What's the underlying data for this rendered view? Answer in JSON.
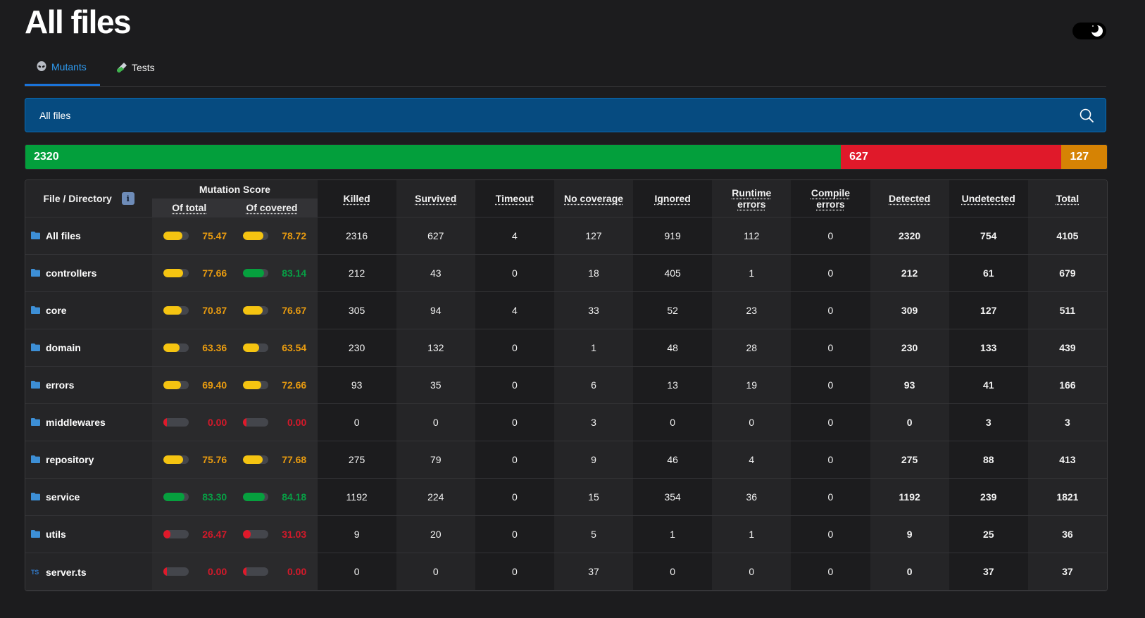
{
  "page": {
    "title": "All files"
  },
  "tabs": [
    {
      "label": "Mutants",
      "icon": "alien-icon",
      "active": true
    },
    {
      "label": "Tests",
      "icon": "test-tube-icon",
      "active": false
    }
  ],
  "breadcrumb": {
    "label": "All files"
  },
  "summary": {
    "killed": "2320",
    "survived": "627",
    "no_coverage": "127",
    "killed_fraction": 0.754,
    "survived_fraction": 0.204,
    "no_coverage_fraction": 0.042,
    "colors": {
      "killed": "#039f3c",
      "survived": "#e0192a",
      "no_coverage": "#d68304"
    }
  },
  "table": {
    "headers": {
      "file": "File / Directory",
      "mutation_score": "Mutation Score",
      "of_total": "Of total",
      "of_covered": "Of covered",
      "killed": "Killed",
      "survived": "Survived",
      "timeout": "Timeout",
      "no_coverage": "No coverage",
      "ignored": "Ignored",
      "runtime_errors_1": "Runtime",
      "runtime_errors_2": "errors",
      "compile_errors_1": "Compile",
      "compile_errors_2": "errors",
      "detected": "Detected",
      "undetected": "Undetected",
      "total": "Total"
    },
    "rows": [
      {
        "name": "All files",
        "type": "folder",
        "of_total": "75.47",
        "of_covered": "78.72",
        "killed": "2316",
        "survived": "627",
        "timeout": "4",
        "no_coverage": "127",
        "ignored": "919",
        "runtime_errors": "112",
        "compile_errors": "0",
        "detected": "2320",
        "undetected": "754",
        "total": "4105"
      },
      {
        "name": "controllers",
        "type": "folder",
        "of_total": "77.66",
        "of_covered": "83.14",
        "killed": "212",
        "survived": "43",
        "timeout": "0",
        "no_coverage": "18",
        "ignored": "405",
        "runtime_errors": "1",
        "compile_errors": "0",
        "detected": "212",
        "undetected": "61",
        "total": "679"
      },
      {
        "name": "core",
        "type": "folder",
        "of_total": "70.87",
        "of_covered": "76.67",
        "killed": "305",
        "survived": "94",
        "timeout": "4",
        "no_coverage": "33",
        "ignored": "52",
        "runtime_errors": "23",
        "compile_errors": "0",
        "detected": "309",
        "undetected": "127",
        "total": "511"
      },
      {
        "name": "domain",
        "type": "folder",
        "of_total": "63.36",
        "of_covered": "63.54",
        "killed": "230",
        "survived": "132",
        "timeout": "0",
        "no_coverage": "1",
        "ignored": "48",
        "runtime_errors": "28",
        "compile_errors": "0",
        "detected": "230",
        "undetected": "133",
        "total": "439"
      },
      {
        "name": "errors",
        "type": "folder",
        "of_total": "69.40",
        "of_covered": "72.66",
        "killed": "93",
        "survived": "35",
        "timeout": "0",
        "no_coverage": "6",
        "ignored": "13",
        "runtime_errors": "19",
        "compile_errors": "0",
        "detected": "93",
        "undetected": "41",
        "total": "166"
      },
      {
        "name": "middlewares",
        "type": "folder",
        "of_total": "0.00",
        "of_covered": "0.00",
        "killed": "0",
        "survived": "0",
        "timeout": "0",
        "no_coverage": "3",
        "ignored": "0",
        "runtime_errors": "0",
        "compile_errors": "0",
        "detected": "0",
        "undetected": "3",
        "total": "3"
      },
      {
        "name": "repository",
        "type": "folder",
        "of_total": "75.76",
        "of_covered": "77.68",
        "killed": "275",
        "survived": "79",
        "timeout": "0",
        "no_coverage": "9",
        "ignored": "46",
        "runtime_errors": "4",
        "compile_errors": "0",
        "detected": "275",
        "undetected": "88",
        "total": "413"
      },
      {
        "name": "service",
        "type": "folder",
        "of_total": "83.30",
        "of_covered": "84.18",
        "killed": "1192",
        "survived": "224",
        "timeout": "0",
        "no_coverage": "15",
        "ignored": "354",
        "runtime_errors": "36",
        "compile_errors": "0",
        "detected": "1192",
        "undetected": "239",
        "total": "1821"
      },
      {
        "name": "utils",
        "type": "folder",
        "of_total": "26.47",
        "of_covered": "31.03",
        "killed": "9",
        "survived": "20",
        "timeout": "0",
        "no_coverage": "5",
        "ignored": "1",
        "runtime_errors": "1",
        "compile_errors": "0",
        "detected": "9",
        "undetected": "25",
        "total": "36"
      },
      {
        "name": "server.ts",
        "type": "typescript-file",
        "of_total": "0.00",
        "of_covered": "0.00",
        "killed": "0",
        "survived": "0",
        "timeout": "0",
        "no_coverage": "37",
        "ignored": "0",
        "runtime_errors": "0",
        "compile_errors": "0",
        "detected": "0",
        "undetected": "37",
        "total": "37"
      }
    ]
  },
  "colors": {
    "accent": "#2f9df4",
    "good": "#06a03e",
    "warning": "#f5c411",
    "danger": "#e0192a"
  }
}
